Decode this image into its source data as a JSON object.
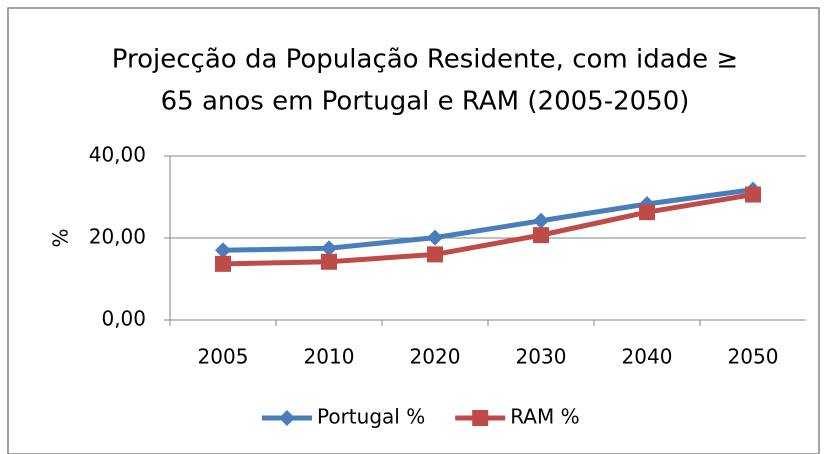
{
  "chart_data": {
    "type": "line",
    "title": [
      "Projecção da População Residente, com idade ≥",
      "65 anos em Portugal e RAM (2005-2050)"
    ],
    "y_label": "%",
    "categories": [
      "2005",
      "2010",
      "2020",
      "2030",
      "2040",
      "2050"
    ],
    "series": [
      {
        "name": "Portugal %",
        "color": "#4a7ebb",
        "marker": "diamond",
        "values": [
          17.0,
          17.5,
          20.1,
          24.2,
          28.3,
          31.8
        ]
      },
      {
        "name": "RAM %",
        "color": "#be4b48",
        "marker": "square",
        "values": [
          13.7,
          14.2,
          16.0,
          20.7,
          26.3,
          30.6
        ]
      }
    ],
    "ylim": [
      0,
      40
    ],
    "yticks": [
      {
        "value": 0,
        "label": "0,00"
      },
      {
        "value": 20,
        "label": "20,00"
      },
      {
        "value": 40,
        "label": "40,00"
      }
    ],
    "grid": true,
    "legend": "bottom"
  }
}
